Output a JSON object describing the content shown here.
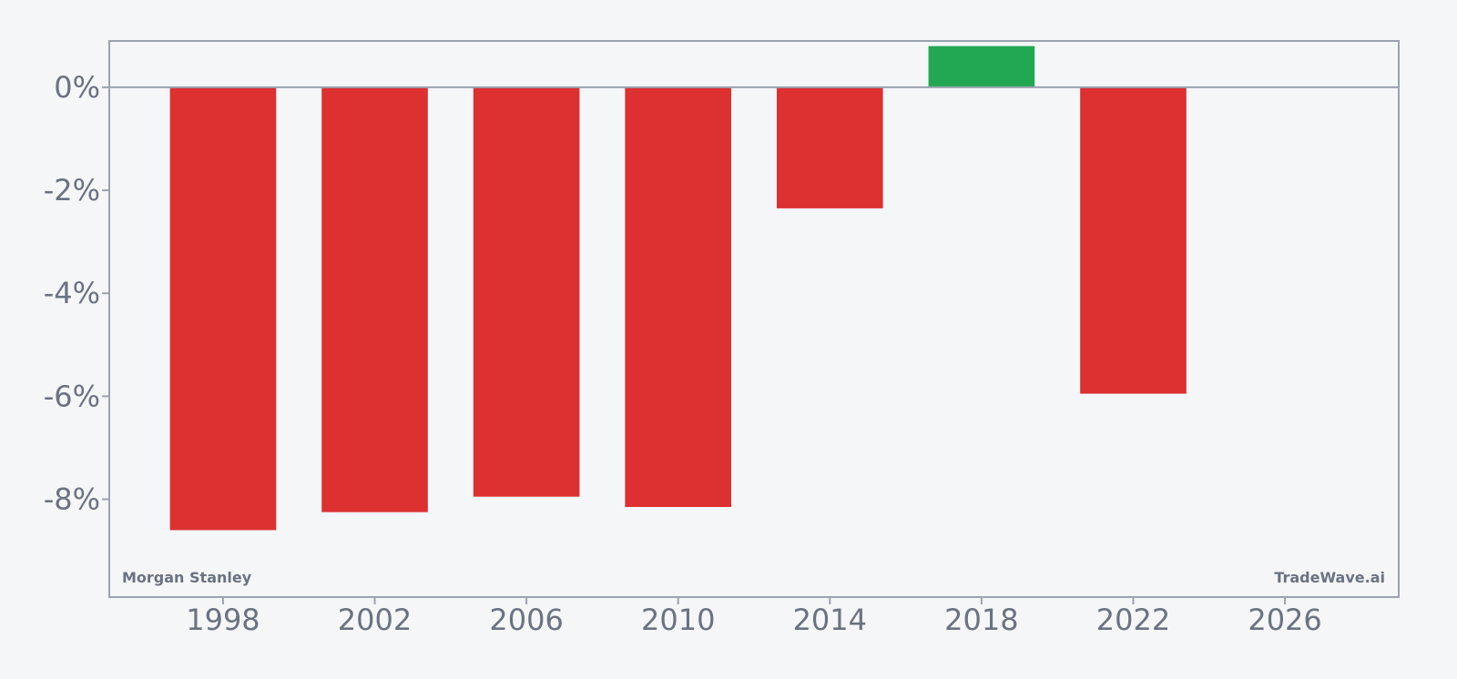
{
  "chart_data": {
    "type": "bar",
    "x": [
      1998,
      2002,
      2006,
      2010,
      2014,
      2018,
      2022
    ],
    "values": [
      -8.6,
      -8.25,
      -7.95,
      -8.15,
      -2.35,
      0.8,
      -5.95
    ],
    "xlim": [
      1995,
      2029
    ],
    "ylim": [
      -9.9,
      0.9
    ],
    "bar_width_years": 2.8,
    "x_ticks": [
      1998,
      2002,
      2006,
      2010,
      2014,
      2018,
      2022,
      2026
    ],
    "x_tick_labels": [
      "1998",
      "2002",
      "2006",
      "2010",
      "2014",
      "2018",
      "2022",
      "2026"
    ],
    "y_ticks": [
      0,
      -2,
      -4,
      -6,
      -8
    ],
    "y_tick_labels": [
      "0%",
      "-2%",
      "-4%",
      "-6%",
      "-8%"
    ],
    "grid": false,
    "colors": {
      "negative": "#dc3031",
      "positive": "#22a852",
      "axis": "#9ca3af",
      "text": "#6b7280",
      "background": "#f4f6f8"
    }
  },
  "watermarks": {
    "left": "Morgan Stanley",
    "right": "TradeWave.ai"
  }
}
